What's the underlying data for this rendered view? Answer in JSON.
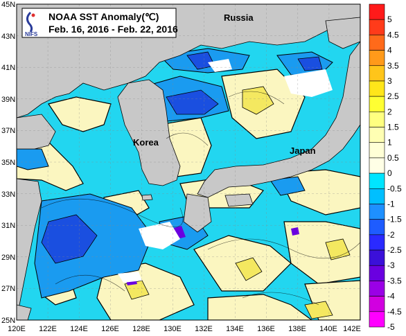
{
  "title": {
    "line1": "NOAA SST Anomaly(℃)",
    "line2": "Feb. 16, 2016 - Feb. 22, 2016",
    "logo_text": "NIFS"
  },
  "places": [
    {
      "id": "russia",
      "label": "Russia"
    },
    {
      "id": "korea",
      "label": "Korea"
    },
    {
      "id": "japan",
      "label": "Japan"
    }
  ],
  "axes": {
    "lat_labels": [
      "45N",
      "43N",
      "41N",
      "39N",
      "37N",
      "35N",
      "33N",
      "31N",
      "29N",
      "27N",
      "25N"
    ],
    "lon_labels": [
      "120E",
      "122E",
      "124E",
      "126E",
      "128E",
      "130E",
      "132E",
      "134E",
      "136E",
      "138E",
      "140E",
      "142E"
    ],
    "lat_range": [
      25,
      45
    ],
    "lon_range": [
      120,
      142
    ]
  },
  "colorbar": {
    "levels": [
      "5",
      "4.5",
      "4",
      "3.5",
      "3",
      "2.5",
      "2",
      "1.5",
      "1",
      "0.5",
      "0",
      "-0.5",
      "-1",
      "-1.5",
      "-2",
      "-2.5",
      "-3",
      "-3.5",
      "-4",
      "-4.5",
      "-5"
    ],
    "colors": [
      "#ff1a1a",
      "#ff3b1a",
      "#ff6a1a",
      "#ff9a1a",
      "#ffc51a",
      "#ffe61a",
      "#ffff33",
      "#ffff80",
      "#ffffb3",
      "#ffffd6",
      "#ffffe6",
      "#00e5ff",
      "#00bfff",
      "#1e90ff",
      "#1e5cff",
      "#2a2aff",
      "#3b10d9",
      "#6a00e0",
      "#9a00e6",
      "#d100e0",
      "#ff00ff"
    ]
  },
  "palette": {
    "land": "#c8c8c8",
    "cold_light": "#22d6f0",
    "cold_mid": "#1a9bf0",
    "cold_deep": "#1a4fe0",
    "cold_extreme": "#3010c0",
    "warm_light": "#fbf6c0",
    "warm_mid": "#f4e860",
    "cloud": "#ffffff"
  }
}
